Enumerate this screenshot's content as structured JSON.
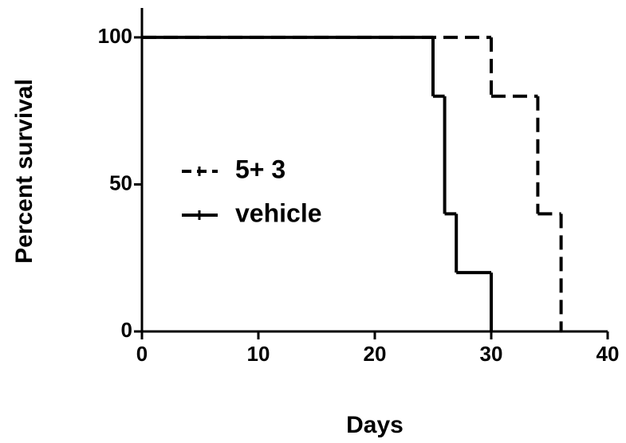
{
  "chart_data": {
    "type": "survival",
    "x_label": "Days",
    "y_label": "Percent survival",
    "xlim": [
      0,
      40
    ],
    "xticks": [
      0,
      10,
      20,
      30,
      40
    ],
    "ylim": [
      0,
      110
    ],
    "yticks": [
      0,
      50,
      100
    ],
    "legend": "center-left",
    "series": [
      {
        "name": "5+ 3",
        "color": "#000000",
        "dash": true,
        "x": [
          0,
          30,
          34,
          36
        ],
        "values": [
          100,
          80,
          40,
          0
        ]
      },
      {
        "name": "vehicle",
        "color": "#000000",
        "dash": false,
        "x": [
          0,
          25,
          26,
          27,
          30
        ],
        "values": [
          100,
          80,
          40,
          20,
          0
        ]
      }
    ]
  }
}
